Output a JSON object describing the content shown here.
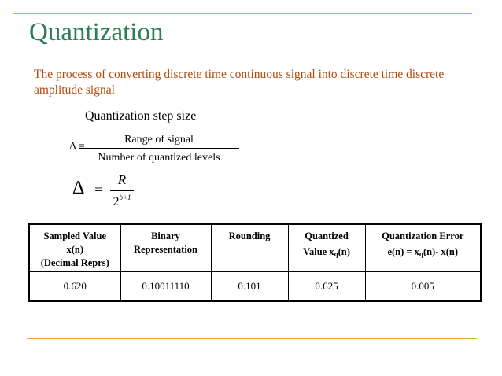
{
  "slide": {
    "title": "Quantization",
    "intro": "The process of converting discrete time continuous signal into discrete time discrete amplitude signal",
    "step_size_heading": "Quantization step size"
  },
  "formula1": {
    "lhs": "Δ =",
    "numerator": "Range of signal",
    "denominator": "Number of quantized levels"
  },
  "formula2": {
    "lhs": "Δ",
    "eq": "=",
    "numerator": "R",
    "denominator_base": "2",
    "denominator_exp": "b+1"
  },
  "table": {
    "headers": {
      "col1": [
        "Sampled Value",
        "x(n)",
        "(Decimal Reprs)"
      ],
      "col2": [
        "Binary",
        "Representation"
      ],
      "col3": [
        "Rounding"
      ],
      "col4_line1": "Quantized",
      "col4_line2_pre": "Value x",
      "col4_line2_sub": "q",
      "col4_line2_post": "(n)",
      "col5_line1": "Quantization Error",
      "col5_line2_pre": "e(n) = x",
      "col5_line2_sub": "q",
      "col5_line2_post": "(n)- x(n)"
    },
    "rows": [
      [
        "0.620",
        "0.10011110",
        "0.101",
        "0.625",
        "0.005"
      ]
    ]
  },
  "colors": {
    "title": "#2f7d57",
    "intro": "#b24a0c",
    "rules": "#e1b12c"
  }
}
